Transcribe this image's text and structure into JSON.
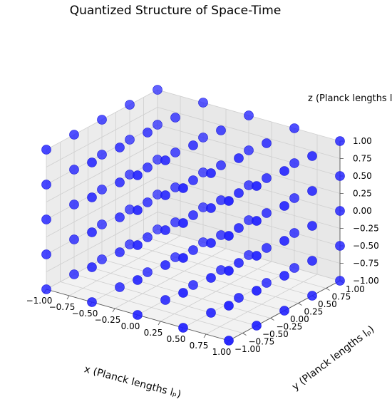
{
  "chart_data": {
    "type": "scatter3d",
    "title": "Quantized Structure of Space-Time",
    "xlabel": "x (Planck lengths lₚ)",
    "ylabel": "y (Planck lengths lₚ)",
    "zlabel": "z (Planck lengths lp)",
    "xlim": [
      -1.0,
      1.0
    ],
    "ylim": [
      -1.0,
      1.0
    ],
    "zlim": [
      -1.0,
      1.0
    ],
    "x_ticks": [
      "−1.00",
      "−0.75",
      "−0.50",
      "−0.25",
      "0.00",
      "0.25",
      "0.50",
      "0.75",
      "1.00"
    ],
    "y_ticks": [
      "−1.00",
      "−0.75",
      "−0.50",
      "−0.25",
      "0.00",
      "0.25",
      "0.50",
      "0.75",
      "1.00"
    ],
    "z_ticks": [
      "−1.00",
      "−0.75",
      "−0.50",
      "−0.25",
      "0.00",
      "0.25",
      "0.50",
      "0.75",
      "1.00"
    ],
    "grid": true,
    "marker_color": "#2020ff",
    "grid_levels": [
      -1.0,
      -0.5,
      0.0,
      0.5,
      1.0
    ],
    "note_points": "5 x 5 x 5 lattice: every combination of the grid_levels for x, y and z"
  }
}
